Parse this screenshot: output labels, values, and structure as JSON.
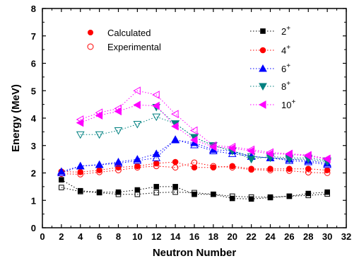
{
  "chart_data": {
    "type": "scatter",
    "title": "",
    "xlabel": "Neutron Number",
    "ylabel": "Energy (MeV)",
    "xlim": [
      0,
      32
    ],
    "ylim": [
      0,
      8
    ],
    "xticks": [
      0,
      2,
      4,
      6,
      8,
      10,
      12,
      14,
      16,
      18,
      20,
      22,
      24,
      26,
      28,
      30,
      32
    ],
    "yticks": [
      0,
      1,
      2,
      3,
      4,
      5,
      6,
      7,
      8
    ],
    "grid": false,
    "x": [
      2,
      4,
      6,
      8,
      10,
      12,
      14,
      16,
      18,
      20,
      22,
      24,
      26,
      28,
      30
    ],
    "legend_markers": [
      {
        "label": "Calculated",
        "marker": "filled-circle",
        "color": "#ff0000"
      },
      {
        "label": "Experimental",
        "marker": "open-circle",
        "color": "#ff0000"
      }
    ],
    "legend_states": {
      "position": "top-right",
      "items": [
        {
          "base": "2",
          "sup": "+",
          "color": "#000000",
          "marker": "square"
        },
        {
          "base": "4",
          "sup": "+",
          "color": "#ff0000",
          "marker": "circle"
        },
        {
          "base": "6",
          "sup": "+",
          "color": "#0000ff",
          "marker": "triangle-up"
        },
        {
          "base": "8",
          "sup": "+",
          "color": "#008080",
          "marker": "triangle-down"
        },
        {
          "base": "10",
          "sup": "+",
          "color": "#ff00ff",
          "marker": "triangle-left"
        }
      ]
    },
    "series": [
      {
        "state": "2+",
        "color": "#000000",
        "marker": "square",
        "calculated": [
          [
            2,
            1.75
          ],
          [
            4,
            1.35
          ],
          [
            6,
            1.3
          ],
          [
            8,
            1.3
          ],
          [
            10,
            1.38
          ],
          [
            12,
            1.5
          ],
          [
            14,
            1.5
          ],
          [
            16,
            1.22
          ],
          [
            18,
            1.22
          ],
          [
            20,
            1.07
          ],
          [
            22,
            1.05
          ],
          [
            24,
            1.1
          ],
          [
            26,
            1.15
          ],
          [
            28,
            1.25
          ],
          [
            30,
            1.3
          ]
        ],
        "experimental": [
          [
            2,
            1.47
          ],
          [
            4,
            1.32
          ],
          [
            6,
            1.28
          ],
          [
            8,
            1.22
          ],
          [
            10,
            1.22
          ],
          [
            12,
            1.28
          ],
          [
            14,
            1.3
          ],
          [
            16,
            1.28
          ],
          [
            18,
            1.22
          ],
          [
            20,
            1.15
          ],
          [
            22,
            1.12
          ],
          [
            24,
            1.12
          ],
          [
            26,
            1.15
          ],
          [
            28,
            1.18
          ],
          [
            30,
            1.23
          ]
        ]
      },
      {
        "state": "4+",
        "color": "#ff0000",
        "marker": "circle",
        "calculated": [
          [
            2,
            2.05
          ],
          [
            4,
            2.03
          ],
          [
            6,
            2.1
          ],
          [
            8,
            2.2
          ],
          [
            10,
            2.25
          ],
          [
            12,
            2.35
          ],
          [
            14,
            2.4
          ],
          [
            16,
            2.2
          ],
          [
            18,
            2.2
          ],
          [
            20,
            2.25
          ],
          [
            22,
            2.15
          ],
          [
            24,
            2.15
          ],
          [
            26,
            2.15
          ],
          [
            28,
            2.15
          ],
          [
            30,
            2.1
          ]
        ],
        "experimental": [
          [
            2,
            1.97
          ],
          [
            4,
            1.95
          ],
          [
            6,
            2.03
          ],
          [
            8,
            2.1
          ],
          [
            10,
            2.2
          ],
          [
            12,
            2.25
          ],
          [
            14,
            2.2
          ],
          [
            16,
            2.38
          ],
          [
            18,
            2.25
          ],
          [
            20,
            2.2
          ],
          [
            22,
            2.12
          ],
          [
            24,
            2.1
          ],
          [
            26,
            2.08
          ],
          [
            28,
            2.02
          ],
          [
            30,
            2.0
          ]
        ]
      },
      {
        "state": "6+",
        "color": "#0000ff",
        "marker": "triangle-up",
        "calculated": [
          [
            2,
            2.05
          ],
          [
            4,
            2.25
          ],
          [
            6,
            2.3
          ],
          [
            8,
            2.4
          ],
          [
            10,
            2.5
          ],
          [
            12,
            2.7
          ],
          [
            14,
            3.2
          ],
          [
            16,
            3.1
          ],
          [
            18,
            2.85
          ],
          [
            20,
            2.8
          ],
          [
            22,
            2.6
          ],
          [
            24,
            2.55
          ],
          [
            26,
            2.5
          ],
          [
            28,
            2.45
          ],
          [
            30,
            2.35
          ]
        ],
        "experimental": [
          [
            2,
            2.0
          ],
          [
            4,
            2.25
          ],
          [
            6,
            2.3
          ],
          [
            8,
            2.35
          ],
          [
            10,
            2.45
          ],
          [
            12,
            2.55
          ],
          [
            14,
            3.22
          ],
          [
            16,
            3.02
          ],
          [
            18,
            2.8
          ],
          [
            20,
            2.7
          ],
          [
            22,
            2.6
          ],
          [
            24,
            2.55
          ],
          [
            26,
            2.45
          ],
          [
            28,
            2.4
          ],
          [
            30,
            2.3
          ]
        ]
      },
      {
        "state": "8+",
        "color": "#008080",
        "marker": "triangle-down",
        "calculated": [
          [
            12,
            4.4
          ],
          [
            14,
            3.8
          ],
          [
            16,
            3.3
          ],
          [
            18,
            3.0
          ],
          [
            20,
            2.8
          ],
          [
            22,
            2.5
          ],
          [
            24,
            2.6
          ],
          [
            26,
            2.55
          ],
          [
            28,
            2.55
          ],
          [
            30,
            2.45
          ]
        ],
        "experimental": [
          [
            4,
            3.4
          ],
          [
            6,
            3.4
          ],
          [
            8,
            3.55
          ],
          [
            10,
            3.78
          ],
          [
            12,
            4.05
          ],
          [
            14,
            3.8
          ],
          [
            16,
            3.3
          ],
          [
            18,
            3.0
          ],
          [
            20,
            2.8
          ],
          [
            22,
            2.6
          ],
          [
            24,
            2.55
          ],
          [
            26,
            2.5
          ],
          [
            28,
            2.5
          ],
          [
            30,
            2.4
          ]
        ]
      },
      {
        "state": "10+",
        "color": "#ff00ff",
        "marker": "triangle-left",
        "calculated": [
          [
            4,
            3.83
          ],
          [
            6,
            4.1
          ],
          [
            8,
            4.25
          ],
          [
            10,
            4.48
          ],
          [
            12,
            4.45
          ],
          [
            14,
            3.7
          ],
          [
            16,
            3.2
          ],
          [
            18,
            2.95
          ],
          [
            20,
            2.9
          ],
          [
            22,
            2.8
          ],
          [
            24,
            2.7
          ],
          [
            26,
            2.68
          ],
          [
            28,
            2.62
          ],
          [
            30,
            2.5
          ]
        ],
        "experimental": [
          [
            4,
            3.95
          ],
          [
            6,
            4.2
          ],
          [
            8,
            4.35
          ],
          [
            10,
            5.0
          ],
          [
            12,
            4.85
          ],
          [
            14,
            4.15
          ],
          [
            16,
            3.55
          ],
          [
            18,
            3.0
          ],
          [
            20,
            2.95
          ],
          [
            22,
            2.85
          ],
          [
            24,
            2.75
          ],
          [
            26,
            2.7
          ],
          [
            28,
            2.65
          ],
          [
            30,
            2.52
          ]
        ]
      }
    ]
  }
}
